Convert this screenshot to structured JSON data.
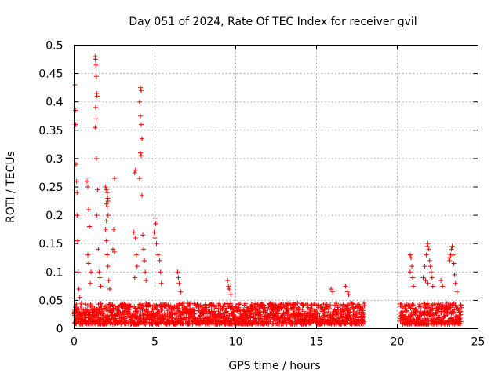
{
  "chart_data": {
    "type": "scatter",
    "title": "Day 051 of 2024, Rate Of TEC Index for receiver gvil",
    "xlabel": "GPS time / hours",
    "ylabel": "ROTI / TECUs",
    "xlim": [
      0,
      25
    ],
    "ylim": [
      0,
      0.5
    ],
    "xticks": [
      0,
      5,
      10,
      15,
      20,
      25
    ],
    "yticks": [
      0,
      0.05,
      0.1,
      0.15,
      0.2,
      0.25,
      0.3,
      0.35,
      0.4,
      0.45,
      0.5
    ],
    "xtick_labels": [
      "0",
      "5",
      "10",
      "15",
      "20",
      "25"
    ],
    "ytick_labels": [
      "0",
      "0.05",
      "0.1",
      "0.15",
      "0.2",
      "0.25",
      "0.3",
      "0.35",
      "0.4",
      "0.45",
      "0.5"
    ],
    "grid": true,
    "marker": "plus",
    "color": "#ff0000",
    "series": [
      {
        "points": [
          [
            0.05,
            0.43
          ],
          [
            0.08,
            0.385
          ],
          [
            0.1,
            0.36
          ],
          [
            0.12,
            0.29
          ],
          [
            0.15,
            0.26
          ],
          [
            0.18,
            0.24
          ],
          [
            0.2,
            0.2
          ],
          [
            0.22,
            0.155
          ],
          [
            0.25,
            0.1
          ],
          [
            0.3,
            0.07
          ],
          [
            0.35,
            0.055
          ],
          [
            0.8,
            0.26
          ],
          [
            0.85,
            0.25
          ],
          [
            0.9,
            0.21
          ],
          [
            0.95,
            0.18
          ],
          [
            0.85,
            0.13
          ],
          [
            0.9,
            0.115
          ],
          [
            1.0,
            0.08
          ],
          [
            1.05,
            0.1
          ],
          [
            1.3,
            0.48
          ],
          [
            1.32,
            0.475
          ],
          [
            1.35,
            0.465
          ],
          [
            1.37,
            0.445
          ],
          [
            1.4,
            0.415
          ],
          [
            1.42,
            0.41
          ],
          [
            1.33,
            0.39
          ],
          [
            1.36,
            0.37
          ],
          [
            1.3,
            0.355
          ],
          [
            1.38,
            0.3
          ],
          [
            1.45,
            0.245
          ],
          [
            1.4,
            0.2
          ],
          [
            1.5,
            0.14
          ],
          [
            1.55,
            0.1
          ],
          [
            1.6,
            0.09
          ],
          [
            1.65,
            0.075
          ],
          [
            1.95,
            0.25
          ],
          [
            2.0,
            0.245
          ],
          [
            2.05,
            0.24
          ],
          [
            2.08,
            0.23
          ],
          [
            2.1,
            0.225
          ],
          [
            2.0,
            0.22
          ],
          [
            2.05,
            0.215
          ],
          [
            2.1,
            0.2
          ],
          [
            2.0,
            0.19
          ],
          [
            1.95,
            0.175
          ],
          [
            2.0,
            0.155
          ],
          [
            2.05,
            0.13
          ],
          [
            2.1,
            0.11
          ],
          [
            2.15,
            0.085
          ],
          [
            2.2,
            0.07
          ],
          [
            2.5,
            0.265
          ],
          [
            2.45,
            0.175
          ],
          [
            2.5,
            0.135
          ],
          [
            2.4,
            0.14
          ],
          [
            3.8,
            0.28
          ],
          [
            3.75,
            0.275
          ],
          [
            3.7,
            0.17
          ],
          [
            3.8,
            0.16
          ],
          [
            3.85,
            0.13
          ],
          [
            3.9,
            0.11
          ],
          [
            3.75,
            0.09
          ],
          [
            4.1,
            0.425
          ],
          [
            4.15,
            0.42
          ],
          [
            4.05,
            0.4
          ],
          [
            4.1,
            0.375
          ],
          [
            4.15,
            0.36
          ],
          [
            4.2,
            0.335
          ],
          [
            4.1,
            0.31
          ],
          [
            4.15,
            0.305
          ],
          [
            4.05,
            0.265
          ],
          [
            4.2,
            0.235
          ],
          [
            4.25,
            0.165
          ],
          [
            4.3,
            0.14
          ],
          [
            4.35,
            0.12
          ],
          [
            4.4,
            0.1
          ],
          [
            4.45,
            0.085
          ],
          [
            5.0,
            0.195
          ],
          [
            5.05,
            0.185
          ],
          [
            4.95,
            0.17
          ],
          [
            5.0,
            0.16
          ],
          [
            5.1,
            0.15
          ],
          [
            5.2,
            0.13
          ],
          [
            5.3,
            0.12
          ],
          [
            5.35,
            0.1
          ],
          [
            5.4,
            0.08
          ],
          [
            6.4,
            0.1
          ],
          [
            6.45,
            0.09
          ],
          [
            6.5,
            0.08
          ],
          [
            6.6,
            0.065
          ],
          [
            9.5,
            0.085
          ],
          [
            9.55,
            0.075
          ],
          [
            9.6,
            0.07
          ],
          [
            9.7,
            0.06
          ],
          [
            15.9,
            0.07
          ],
          [
            16.0,
            0.065
          ],
          [
            16.8,
            0.075
          ],
          [
            16.9,
            0.065
          ],
          [
            17.0,
            0.06
          ],
          [
            20.8,
            0.13
          ],
          [
            20.85,
            0.125
          ],
          [
            20.9,
            0.11
          ],
          [
            20.8,
            0.1
          ],
          [
            20.95,
            0.09
          ],
          [
            21.0,
            0.075
          ],
          [
            21.6,
            0.09
          ],
          [
            21.7,
            0.11
          ],
          [
            21.8,
            0.13
          ],
          [
            21.85,
            0.145
          ],
          [
            21.9,
            0.15
          ],
          [
            21.95,
            0.14
          ],
          [
            22.0,
            0.12
          ],
          [
            22.05,
            0.11
          ],
          [
            22.1,
            0.1
          ],
          [
            22.15,
            0.09
          ],
          [
            21.75,
            0.085
          ],
          [
            21.9,
            0.08
          ],
          [
            22.2,
            0.075
          ],
          [
            22.7,
            0.085
          ],
          [
            22.8,
            0.075
          ],
          [
            23.2,
            0.125
          ],
          [
            23.25,
            0.12
          ],
          [
            23.3,
            0.13
          ],
          [
            23.35,
            0.14
          ],
          [
            23.4,
            0.145
          ],
          [
            23.45,
            0.13
          ],
          [
            23.5,
            0.115
          ],
          [
            23.55,
            0.095
          ],
          [
            23.6,
            0.08
          ],
          [
            23.7,
            0.065
          ]
        ]
      }
    ],
    "background_band": {
      "segments": [
        [
          0,
          18.0
        ],
        [
          20.2,
          24.0
        ]
      ],
      "typical_min": 0.008,
      "typical_max": 0.045
    }
  }
}
